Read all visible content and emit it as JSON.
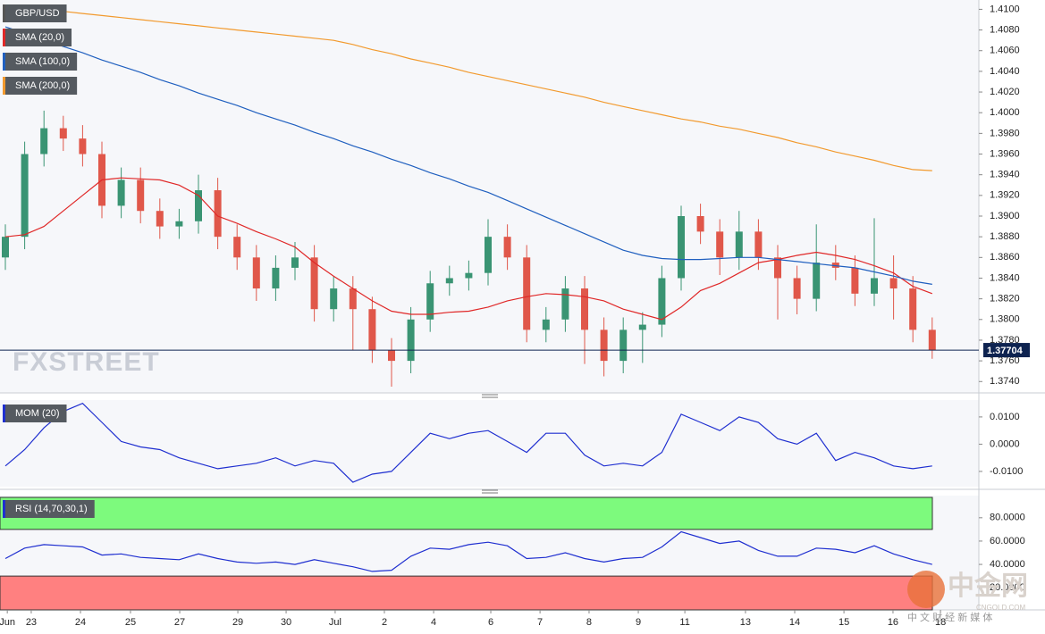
{
  "chart_data": [
    {
      "type": "candlestick",
      "title": "GBP/USD",
      "title_color": "#555555",
      "open": [
        1.386,
        1.388,
        1.396,
        1.3985,
        1.3975,
        1.396,
        1.391,
        1.3935,
        1.3905,
        1.389,
        1.3895,
        1.3925,
        1.388,
        1.386,
        1.383,
        1.385,
        1.386,
        1.381,
        1.383,
        1.381,
        1.377,
        1.376,
        1.38,
        1.3835,
        1.384,
        1.3845,
        1.388,
        1.386,
        1.379,
        1.38,
        1.383,
        1.379,
        1.376,
        1.379,
        1.3795,
        1.384,
        1.39,
        1.3885,
        1.386,
        1.3885,
        1.386,
        1.384,
        1.382,
        1.3855,
        1.385,
        1.3825,
        1.384,
        1.383,
        1.379
      ],
      "high": [
        1.3892,
        1.3972,
        1.4002,
        1.3997,
        1.3988,
        1.3972,
        1.3947,
        1.3947,
        1.3917,
        1.3907,
        1.394,
        1.3937,
        1.3892,
        1.3872,
        1.3862,
        1.3875,
        1.3872,
        1.3842,
        1.3842,
        1.3822,
        1.3782,
        1.3812,
        1.3847,
        1.3852,
        1.3857,
        1.3897,
        1.3892,
        1.3872,
        1.3812,
        1.3842,
        1.3842,
        1.3802,
        1.3802,
        1.3807,
        1.3852,
        1.391,
        1.3912,
        1.3897,
        1.3905,
        1.3897,
        1.3872,
        1.3852,
        1.3892,
        1.3872,
        1.3862,
        1.3898,
        1.3862,
        1.3842,
        1.3802
      ],
      "low": [
        1.3848,
        1.3868,
        1.3948,
        1.3963,
        1.3948,
        1.3898,
        1.3898,
        1.3893,
        1.3878,
        1.3878,
        1.3883,
        1.3868,
        1.3848,
        1.3818,
        1.3818,
        1.3838,
        1.3798,
        1.3798,
        1.377,
        1.3758,
        1.3735,
        1.3748,
        1.3788,
        1.3823,
        1.3828,
        1.3833,
        1.3848,
        1.3778,
        1.3778,
        1.3788,
        1.3757,
        1.3745,
        1.3748,
        1.3758,
        1.3783,
        1.3828,
        1.3873,
        1.3843,
        1.3848,
        1.3848,
        1.38,
        1.3805,
        1.3808,
        1.3838,
        1.3813,
        1.3813,
        1.38,
        1.3778,
        1.3762
      ],
      "close": [
        1.388,
        1.396,
        1.3985,
        1.3975,
        1.396,
        1.391,
        1.3935,
        1.3905,
        1.389,
        1.3895,
        1.3925,
        1.388,
        1.386,
        1.383,
        1.385,
        1.386,
        1.381,
        1.383,
        1.381,
        1.377,
        1.376,
        1.38,
        1.3835,
        1.384,
        1.3845,
        1.388,
        1.386,
        1.379,
        1.38,
        1.383,
        1.379,
        1.376,
        1.379,
        1.3795,
        1.384,
        1.39,
        1.3885,
        1.386,
        1.3885,
        1.386,
        1.384,
        1.382,
        1.3855,
        1.385,
        1.3825,
        1.384,
        1.383,
        1.379,
        1.37704
      ],
      "up_color": "#3a9473",
      "down_color": "#e0574a",
      "overlays": [
        {
          "name": "SMA (20,0)",
          "color": "#e02828",
          "values": [
            1.388,
            1.3882,
            1.389,
            1.3905,
            1.392,
            1.3935,
            1.3937,
            1.3936,
            1.3935,
            1.393,
            1.392,
            1.39,
            1.3893,
            1.3885,
            1.3878,
            1.387,
            1.3855,
            1.3842,
            1.383,
            1.3818,
            1.3808,
            1.3805,
            1.3805,
            1.3807,
            1.3808,
            1.3812,
            1.3818,
            1.3822,
            1.3825,
            1.3824,
            1.3822,
            1.3818,
            1.381,
            1.3805,
            1.38,
            1.3812,
            1.3828,
            1.3835,
            1.3845,
            1.3855,
            1.3858,
            1.3862,
            1.3865,
            1.3862,
            1.3858,
            1.3852,
            1.3845,
            1.3832,
            1.3825
          ]
        },
        {
          "name": "SMA (100,0)",
          "color": "#1f5fbf",
          "values": [
            1.4083,
            1.4077,
            1.407,
            1.4064,
            1.4058,
            1.4051,
            1.4045,
            1.4039,
            1.4032,
            1.4026,
            1.4019,
            1.4013,
            1.4007,
            1.4,
            1.3994,
            1.3988,
            1.3981,
            1.3975,
            1.3968,
            1.3962,
            1.3955,
            1.3949,
            1.3942,
            1.3936,
            1.3929,
            1.3923,
            1.3915,
            1.3907,
            1.3899,
            1.3891,
            1.3883,
            1.3875,
            1.3867,
            1.3862,
            1.3859,
            1.3858,
            1.3858,
            1.3859,
            1.386,
            1.386,
            1.3858,
            1.3856,
            1.3854,
            1.3852,
            1.385,
            1.3846,
            1.3842,
            1.3837,
            1.3834
          ]
        },
        {
          "name": "SMA (200,0)",
          "color": "#f29a2e",
          "values": [
            1.4104,
            1.4102,
            1.41,
            1.4098,
            1.4096,
            1.4094,
            1.4092,
            1.409,
            1.4088,
            1.4086,
            1.4084,
            1.4082,
            1.408,
            1.4078,
            1.4076,
            1.4074,
            1.4072,
            1.407,
            1.4066,
            1.4061,
            1.4057,
            1.4052,
            1.4048,
            1.4044,
            1.4039,
            1.4035,
            1.4031,
            1.4027,
            1.4023,
            1.4019,
            1.4015,
            1.401,
            1.4006,
            1.4002,
            1.3998,
            1.3994,
            1.3991,
            1.3987,
            1.3984,
            1.398,
            1.3976,
            1.3971,
            1.3967,
            1.3962,
            1.3958,
            1.3954,
            1.3949,
            1.3945,
            1.3944
          ]
        }
      ],
      "last_price": 1.37704,
      "last_price_color": "#0e2350",
      "ylim": [
        1.3729,
        1.4109
      ],
      "yticks": [
        {
          "value": 1.374,
          "label": "1.3740"
        },
        {
          "value": 1.376,
          "label": "1.3760"
        },
        {
          "value": 1.378,
          "label": "1.3780"
        },
        {
          "value": 1.38,
          "label": "1.3800"
        },
        {
          "value": 1.382,
          "label": "1.3820"
        },
        {
          "value": 1.384,
          "label": "1.3840"
        },
        {
          "value": 1.386,
          "label": "1.3860"
        },
        {
          "value": 1.388,
          "label": "1.3880"
        },
        {
          "value": 1.39,
          "label": "1.3900"
        },
        {
          "value": 1.392,
          "label": "1.3920"
        },
        {
          "value": 1.394,
          "label": "1.3940"
        },
        {
          "value": 1.396,
          "label": "1.3960"
        },
        {
          "value": 1.398,
          "label": "1.3980"
        },
        {
          "value": 1.4,
          "label": "1.4000"
        },
        {
          "value": 1.402,
          "label": "1.4020"
        },
        {
          "value": 1.404,
          "label": "1.4040"
        },
        {
          "value": 1.406,
          "label": "1.4060"
        },
        {
          "value": 1.408,
          "label": "1.4080"
        },
        {
          "value": 1.41,
          "label": "1.4100"
        }
      ],
      "xticks": [
        {
          "value": 0.1,
          "label": "Jun"
        },
        {
          "value": 1.34,
          "label": "23"
        },
        {
          "value": 3.89,
          "label": "24"
        },
        {
          "value": 6.48,
          "label": "25"
        },
        {
          "value": 9.03,
          "label": "27"
        },
        {
          "value": 12.04,
          "label": "29"
        },
        {
          "value": 14.54,
          "label": "30"
        },
        {
          "value": 17.08,
          "label": "Jul"
        },
        {
          "value": 19.63,
          "label": "2"
        },
        {
          "value": 22.18,
          "label": "4"
        },
        {
          "value": 25.14,
          "label": "6"
        },
        {
          "value": 27.69,
          "label": "7"
        },
        {
          "value": 30.23,
          "label": "8"
        },
        {
          "value": 32.78,
          "label": "9"
        },
        {
          "value": 35.19,
          "label": "11"
        },
        {
          "value": 38.33,
          "label": "13"
        },
        {
          "value": 40.88,
          "label": "14"
        },
        {
          "value": 43.43,
          "label": "15"
        },
        {
          "value": 45.97,
          "label": "16"
        },
        {
          "value": 48.43,
          "label": "18"
        }
      ]
    },
    {
      "type": "line",
      "series": [
        {
          "name": "MOM (20)",
          "color": "#1f2fd0",
          "values": [
            -0.008,
            -0.002,
            0.006,
            0.012,
            0.015,
            0.008,
            0.001,
            -0.001,
            -0.002,
            -0.005,
            -0.007,
            -0.009,
            -0.008,
            -0.007,
            -0.005,
            -0.008,
            -0.006,
            -0.007,
            -0.014,
            -0.011,
            -0.01,
            -0.003,
            0.004,
            0.002,
            0.004,
            0.005,
            0.001,
            -0.003,
            0.004,
            0.004,
            -0.004,
            -0.008,
            -0.007,
            -0.008,
            -0.003,
            0.011,
            0.008,
            0.005,
            0.01,
            0.008,
            0.002,
            0.0,
            0.004,
            -0.006,
            -0.003,
            -0.005,
            -0.008,
            -0.009,
            -0.008
          ]
        }
      ],
      "ylim": [
        -0.0156,
        0.0162
      ],
      "yticks": [
        {
          "value": -0.01,
          "label": "-0.0100"
        },
        {
          "value": 0,
          "label": "0.0000"
        },
        {
          "value": 0.01,
          "label": "0.0100"
        }
      ]
    },
    {
      "type": "line",
      "series": [
        {
          "name": "RSI (14,70,30,1)",
          "color": "#1f2fd0",
          "values": [
            45,
            54,
            57,
            56,
            55,
            48,
            49,
            46,
            45,
            44,
            49,
            45,
            42,
            41,
            42,
            40,
            44,
            41,
            38,
            34,
            35,
            47,
            54,
            53,
            57,
            59,
            56,
            45,
            46,
            50,
            45,
            42,
            45,
            46,
            55,
            68,
            63,
            58,
            60,
            52,
            47,
            47,
            54,
            53,
            50,
            56,
            49,
            44,
            40
          ]
        }
      ],
      "overbought": 70,
      "oversold": 30,
      "overbought_color": "#7dfa7d",
      "oversold_color": "#ff8080",
      "ylim": [
        1,
        99
      ],
      "yticks": [
        {
          "value": 20,
          "label": "20.0000"
        },
        {
          "value": 40,
          "label": "40.0000"
        },
        {
          "value": 60,
          "label": "60.0000"
        },
        {
          "value": 80,
          "label": "80.0000"
        }
      ]
    }
  ],
  "watermarks": {
    "fxstreet": "FXSTREET",
    "cngold": "中金网",
    "cngold_url": "CNGOLD.COM",
    "cngold_tagline": "中 文 财 经 新 媒 体"
  }
}
